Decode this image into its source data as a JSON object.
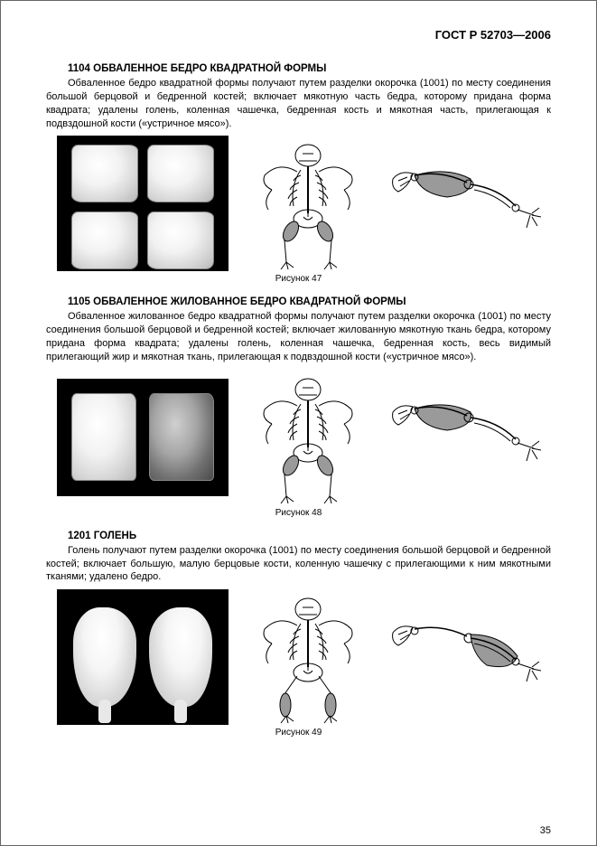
{
  "header": {
    "standard": "ГОСТ Р 52703—2006"
  },
  "sections": [
    {
      "title": "1104 ОБВАЛЕННОЕ БЕДРО КВАДРАТНОЙ ФОРМЫ",
      "text": "Обваленное бедро квадратной формы получают путем разделки окорочка (1001) по месту соединения большой берцовой и бедренной костей; включает мякотную часть бедра, которому придана форма квадрата; удалены голень, коленная чашечка, бедренная кость и мякотная часть, прилегающая к подвздошной кости («устричное мясо»).",
      "caption": "Рисунок 47",
      "photo_type": "four-squares",
      "diagrams": {
        "highlight_drumstick": false,
        "highlight_thigh": true
      }
    },
    {
      "title": "1105 ОБВАЛЕННОЕ ЖИЛОВАННОЕ БЕДРО КВАДРАТНОЙ ФОРМЫ",
      "text": "Обваленное жилованное бедро квадратной формы получают путем разделки окорочка (1001) по месту соединения большой берцовой и бедренной костей; включает жилованную мякотную ткань бедра, которому придана форма квадрата; удалены голень, коленная чашечка, бедренная кость, весь видимый прилегающий жир и мякотная ткань, прилегающая к подвздошной кости («устричное мясо»).",
      "caption": "Рисунок 48",
      "photo_type": "two-squares",
      "diagrams": {
        "highlight_drumstick": false,
        "highlight_thigh": true
      }
    },
    {
      "title": "1201 ГОЛЕНЬ",
      "text": "Голень получают путем разделки окорочка (1001) по месту соединения большой берцовой и бедренной костей; включает большую, малую берцовые кости, коленную чашечку с прилегающими к ним мякотными тканями; удалено бедро.",
      "caption": "Рисунок 49",
      "photo_type": "two-drumsticks",
      "diagrams": {
        "highlight_drumstick": true,
        "highlight_thigh": false
      }
    }
  ],
  "page_number": "35",
  "colors": {
    "stroke": "#000000",
    "highlight_fill": "#9a9a9a",
    "bg": "#ffffff"
  }
}
